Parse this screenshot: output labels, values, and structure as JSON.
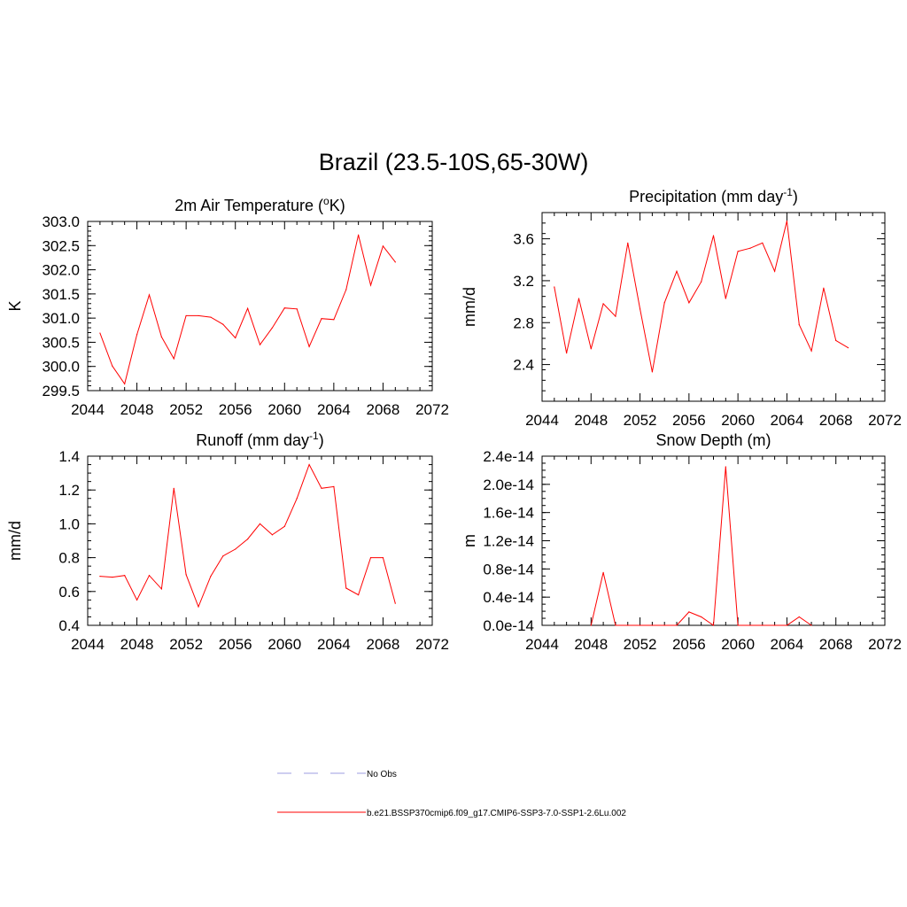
{
  "title": "Brazil (23.5-10S,65-30W)",
  "line_color": "#ff0000",
  "obs_color": "#b0b0e8",
  "legend": {
    "obs_label": "No Obs",
    "model_label": "b.e21.BSSP370cmip6.f09_g17.CMIP6-SSP3-7.0-SSP1-2.6Lu.002"
  },
  "chart_data": [
    {
      "type": "line",
      "title": "2m Air Temperature",
      "title_unit": "K",
      "ylabel": "K",
      "xlim": [
        2044,
        2072
      ],
      "xticks": [
        2044,
        2048,
        2052,
        2056,
        2060,
        2064,
        2068,
        2072
      ],
      "ylim": [
        299.5,
        303.0
      ],
      "yticks": [
        "299.5",
        "300.0",
        "300.5",
        "301.0",
        "301.5",
        "302.0",
        "302.5",
        "303.0"
      ],
      "ytick_values": [
        299.5,
        300.0,
        300.5,
        301.0,
        301.5,
        302.0,
        302.5,
        303.0
      ],
      "yminor": 0.1,
      "x": [
        2045,
        2046,
        2047,
        2048,
        2049,
        2050,
        2051,
        2052,
        2053,
        2054,
        2055,
        2056,
        2057,
        2058,
        2059,
        2060,
        2061,
        2062,
        2063,
        2064,
        2065,
        2066,
        2067,
        2068,
        2069
      ],
      "y": [
        300.69,
        300.01,
        299.64,
        300.66,
        301.48,
        300.61,
        300.16,
        301.05,
        301.05,
        301.02,
        300.87,
        300.59,
        301.2,
        300.45,
        300.8,
        301.21,
        301.19,
        300.41,
        300.99,
        300.97,
        301.59,
        302.72,
        301.68,
        302.49,
        302.16
      ]
    },
    {
      "type": "line",
      "title": "Precipitation",
      "title_unit": "mm day",
      "ylabel": "mm/d",
      "xlim": [
        2044,
        2072
      ],
      "xticks": [
        2044,
        2048,
        2052,
        2056,
        2060,
        2064,
        2068,
        2072
      ],
      "ylim": [
        2.05,
        3.85
      ],
      "yticks": [
        "2.4",
        "2.8",
        "3.2",
        "3.6"
      ],
      "ytick_values": [
        2.4,
        2.8,
        3.2,
        3.6
      ],
      "yminor": 0.1,
      "x": [
        2045,
        2046,
        2047,
        2048,
        2049,
        2050,
        2051,
        2052,
        2053,
        2054,
        2055,
        2056,
        2057,
        2058,
        2059,
        2060,
        2061,
        2062,
        2063,
        2064,
        2065,
        2066,
        2067,
        2068,
        2069
      ],
      "y": [
        3.14,
        2.51,
        3.03,
        2.55,
        2.98,
        2.86,
        3.56,
        2.93,
        2.33,
        2.99,
        3.29,
        2.99,
        3.19,
        3.63,
        3.03,
        3.48,
        3.51,
        3.56,
        3.29,
        3.77,
        2.78,
        2.53,
        3.13,
        2.63,
        2.56
      ]
    },
    {
      "type": "line",
      "title": "Runoff",
      "title_unit": "mm day",
      "ylabel": "mm/d",
      "xlim": [
        2044,
        2072
      ],
      "xticks": [
        2044,
        2048,
        2052,
        2056,
        2060,
        2064,
        2068,
        2072
      ],
      "ylim": [
        0.4,
        1.4
      ],
      "yticks": [
        "0.4",
        "0.6",
        "0.8",
        "1.0",
        "1.2",
        "1.4"
      ],
      "ytick_values": [
        0.4,
        0.6,
        0.8,
        1.0,
        1.2,
        1.4
      ],
      "yminor": 0.05,
      "x": [
        2045,
        2046,
        2047,
        2048,
        2049,
        2050,
        2051,
        2052,
        2053,
        2054,
        2055,
        2056,
        2057,
        2058,
        2059,
        2060,
        2061,
        2062,
        2063,
        2064,
        2065,
        2066,
        2067,
        2068,
        2069
      ],
      "y": [
        0.69,
        0.685,
        0.695,
        0.55,
        0.695,
        0.615,
        1.21,
        0.7,
        0.51,
        0.69,
        0.81,
        0.85,
        0.91,
        1.0,
        0.935,
        0.985,
        1.15,
        1.35,
        1.21,
        1.22,
        0.62,
        0.58,
        0.8,
        0.8,
        0.53
      ]
    },
    {
      "type": "line",
      "title": "Snow Depth (m)",
      "ylabel": "m",
      "xlim": [
        2044,
        2072
      ],
      "xticks": [
        2044,
        2048,
        2052,
        2056,
        2060,
        2064,
        2068,
        2072
      ],
      "ylim": [
        0.0,
        2.4e-14
      ],
      "yticks": [
        "0.0e-14",
        "0.4e-14",
        "0.8e-14",
        "1.2e-14",
        "1.6e-14",
        "2.0e-14",
        "2.4e-14"
      ],
      "ytick_values": [
        0.0,
        4e-15,
        8e-15,
        1.2e-14,
        1.6e-14,
        2e-14,
        2.4e-14
      ],
      "yminor": 1e-15,
      "x": [
        2048,
        2049,
        2050,
        2051,
        2052,
        2053,
        2054,
        2055,
        2056,
        2057,
        2058,
        2059,
        2060,
        2061,
        2062,
        2063,
        2064,
        2065,
        2066
      ],
      "y": [
        0.0,
        7.5e-15,
        0.0,
        0.0,
        0.0,
        0.0,
        0.0,
        0.0,
        1.9e-15,
        1.2e-15,
        0.0,
        2.25e-14,
        0.0,
        0.0,
        0.0,
        0.0,
        0.0,
        1.2e-15,
        0.0
      ]
    }
  ]
}
